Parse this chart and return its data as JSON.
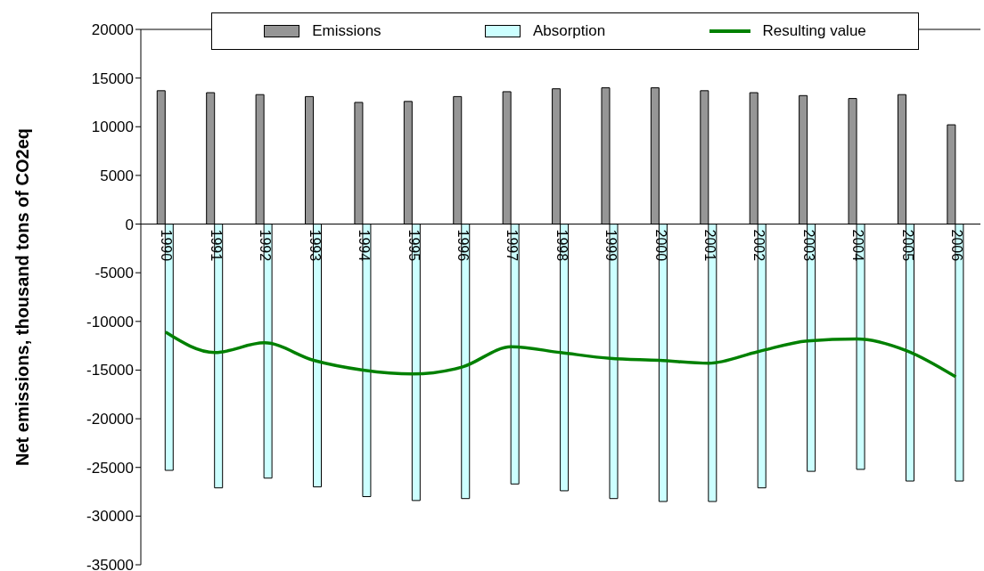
{
  "chart_data": {
    "type": "bar",
    "ylabel": "Net emissions, thousand tons of CO2eq",
    "categories": [
      "1990",
      "1991",
      "1992",
      "1993",
      "1994",
      "1995",
      "1996",
      "1997",
      "1998",
      "1999",
      "2000",
      "2001",
      "2002",
      "2003",
      "2004",
      "2005",
      "2006"
    ],
    "series": [
      {
        "name": "Emissions",
        "color": "#969696",
        "values": [
          13700,
          13500,
          13300,
          13100,
          12500,
          12600,
          13100,
          13600,
          13900,
          14000,
          14000,
          13700,
          13500,
          13200,
          12900,
          13300,
          10200
        ]
      },
      {
        "name": "Absorption",
        "color": "#ccffff",
        "values": [
          -25300,
          -27100,
          -26100,
          -27000,
          -28000,
          -28400,
          -28200,
          -26700,
          -27400,
          -28200,
          -28500,
          -28500,
          -27100,
          -25400,
          -25200,
          -26400,
          -26400
        ]
      },
      {
        "name": "Resulting value",
        "type": "line",
        "color": "#008000",
        "values": [
          -11100,
          -13200,
          -12200,
          -14000,
          -15000,
          -15400,
          -14700,
          -12600,
          -13200,
          -13800,
          -14000,
          -14300,
          -13100,
          -12000,
          -11800,
          -13000,
          -15700
        ]
      }
    ],
    "ylim": [
      -35000,
      20000
    ],
    "yticks": [
      -35000,
      -30000,
      -25000,
      -20000,
      -15000,
      -10000,
      -5000,
      0,
      5000,
      10000,
      15000,
      20000
    ],
    "legend": "top",
    "marker": "none"
  }
}
